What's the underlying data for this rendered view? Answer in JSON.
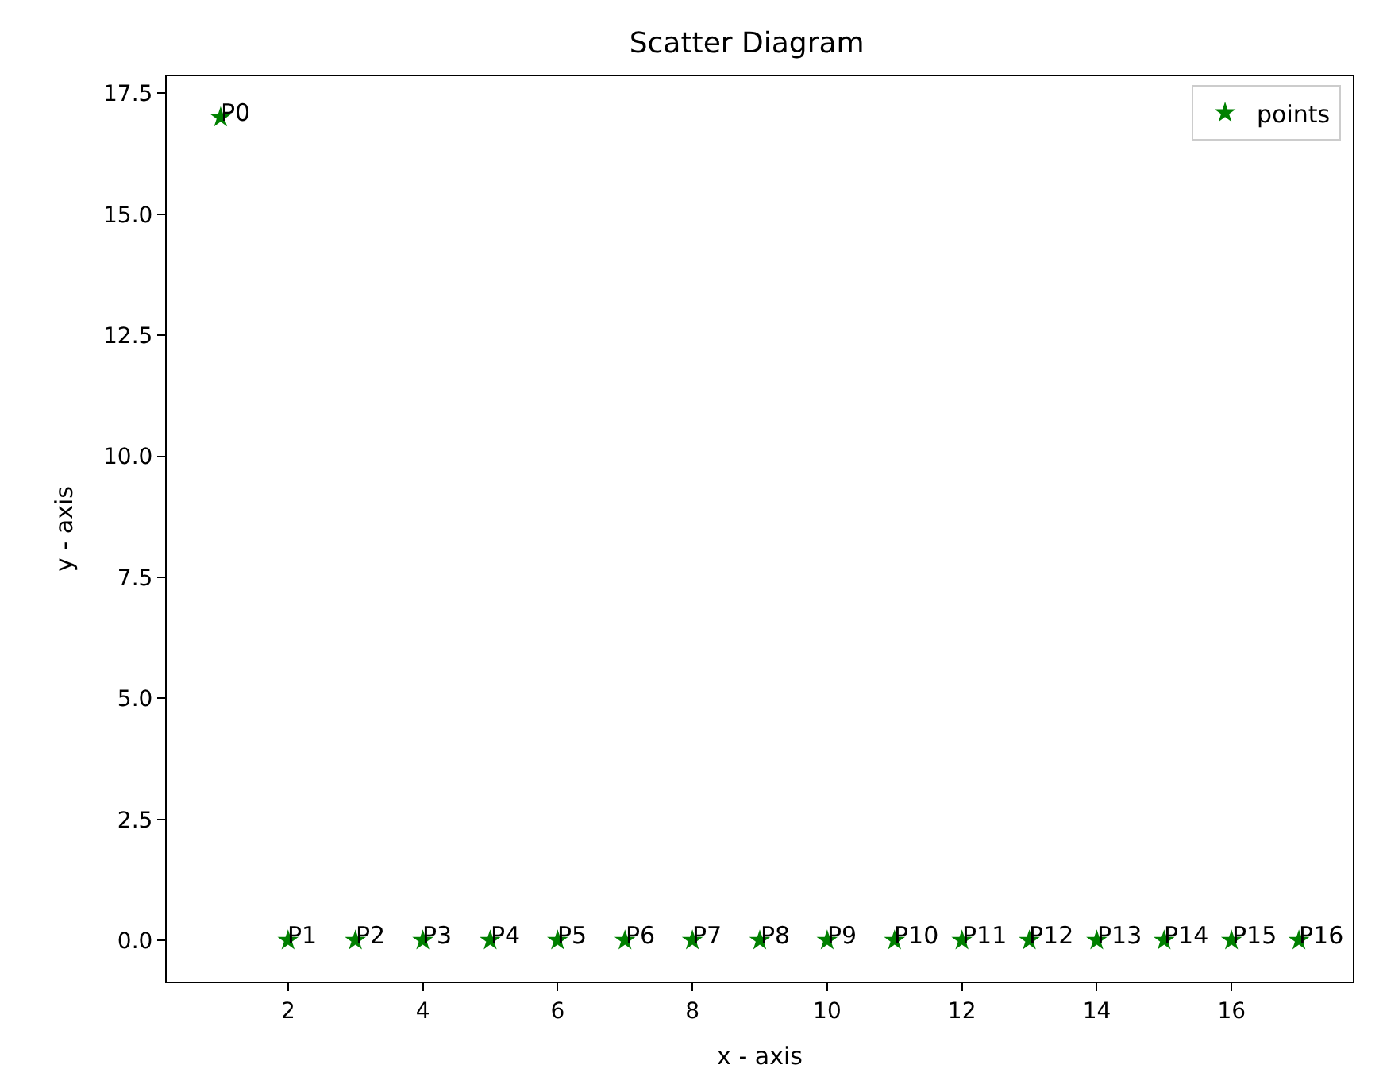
{
  "chart_data": {
    "type": "scatter",
    "title": "Scatter Diagram",
    "xlabel": "x - axis",
    "ylabel": "y - axis",
    "x": [
      1,
      2,
      3,
      4,
      5,
      6,
      7,
      8,
      9,
      10,
      11,
      12,
      13,
      14,
      15,
      16,
      17
    ],
    "series": [
      {
        "name": "points",
        "color": "#008000",
        "values": [
          17,
          0,
          0,
          0,
          0,
          0,
          0,
          0,
          0,
          0,
          0,
          0,
          0,
          0,
          0,
          0,
          0
        ]
      }
    ],
    "annotations": [
      {
        "text": "P0",
        "x": 1,
        "y": 17
      },
      {
        "text": "P1",
        "x": 2,
        "y": 0
      },
      {
        "text": "P2",
        "x": 3,
        "y": 0
      },
      {
        "text": "P3",
        "x": 4,
        "y": 0
      },
      {
        "text": "P4",
        "x": 5,
        "y": 0
      },
      {
        "text": "P5",
        "x": 6,
        "y": 0
      },
      {
        "text": "P6",
        "x": 7,
        "y": 0
      },
      {
        "text": "P7",
        "x": 8,
        "y": 0
      },
      {
        "text": "P8",
        "x": 9,
        "y": 0
      },
      {
        "text": "P9",
        "x": 10,
        "y": 0
      },
      {
        "text": "P10",
        "x": 11,
        "y": 0
      },
      {
        "text": "P11",
        "x": 12,
        "y": 0
      },
      {
        "text": "P12",
        "x": 13,
        "y": 0
      },
      {
        "text": "P13",
        "x": 14,
        "y": 0
      },
      {
        "text": "P14",
        "x": 15,
        "y": 0
      },
      {
        "text": "P15",
        "x": 16,
        "y": 0
      },
      {
        "text": "P16",
        "x": 17,
        "y": 0
      }
    ],
    "xlim": [
      0.2,
      17.8
    ],
    "xticks": [
      2,
      4,
      6,
      8,
      10,
      12,
      14,
      16
    ],
    "ylim": [
      -0.85,
      17.85
    ],
    "yticks": [
      {
        "value": 0,
        "label": "0.0"
      },
      {
        "value": 2.5,
        "label": "2.5"
      },
      {
        "value": 5,
        "label": "5.0"
      },
      {
        "value": 7.5,
        "label": "7.5"
      },
      {
        "value": 10,
        "label": "10.0"
      },
      {
        "value": 12.5,
        "label": "12.5"
      },
      {
        "value": 15,
        "label": "15.0"
      },
      {
        "value": 17.5,
        "label": "17.5"
      }
    ],
    "marker": "star",
    "legend": "top right"
  }
}
